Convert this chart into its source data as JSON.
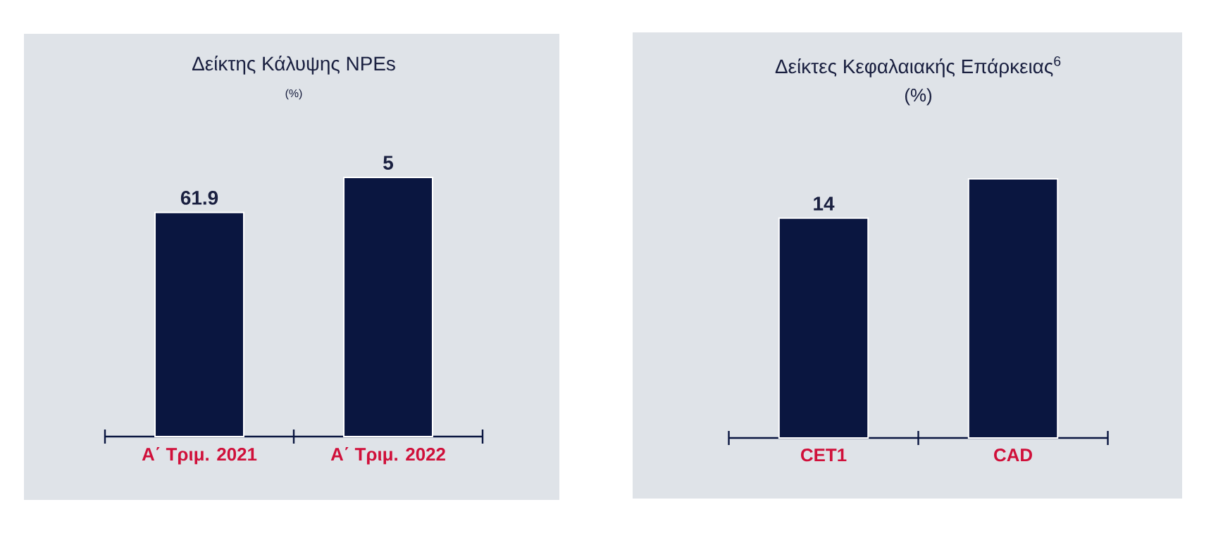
{
  "chart_data": [
    {
      "type": "bar",
      "title": "Δείκτης Κάλυψης NPEs",
      "subtitle": "(%)",
      "categories": [
        "Α΄ Τριμ. 2021",
        "Α΄ Τριμ. 2022"
      ],
      "values": [
        61.9,
        71.6
      ],
      "value_labels": [
        "61.9",
        null
      ],
      "color": "#0a1640",
      "annotations": [
        {
          "text": "5",
          "x": "Α΄ Τριμ. 2022",
          "y": 71.6
        }
      ]
    },
    {
      "type": "bar",
      "title": "Δείκτες Κεφαλαιακής Επάρκειας$^{6}$",
      "subtitle": "(%)",
      "categories": [
        "CET1",
        "CAD"
      ],
      "values": [
        14,
        16.5
      ],
      "value_labels": [
        "14",
        null
      ],
      "color": "#0a1640"
    }
  ]
}
